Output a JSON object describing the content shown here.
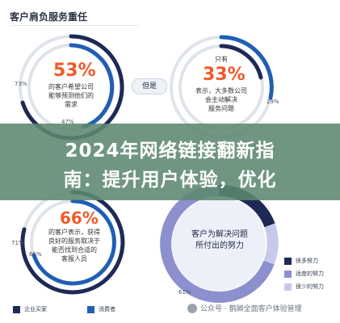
{
  "page": {
    "title": "客户肩负服务重任"
  },
  "top_left": {
    "big": "53%",
    "caption": [
      "的客户希望公司",
      "能够预测他们的",
      "需求"
    ],
    "pct_outer": "73%",
    "pct_inner": "47%"
  },
  "connector": {
    "label": "但是"
  },
  "top_right": {
    "prefix": "只有",
    "big": "33%",
    "caption": [
      "表示，大多数公司",
      "会主动解决",
      "服务问题"
    ],
    "pct_outer": "29%"
  },
  "banner": {
    "line1": "2024年网络链接翻新指",
    "line2": "南：提升用户体验，优化"
  },
  "bottom_left": {
    "big": "66%",
    "caption": [
      "的客户表示，获得",
      "良好的服务取决于",
      "能否找到合适的",
      "客服人员"
    ],
    "pct_outer": "71%",
    "pct_inner": "65%"
  },
  "bottom_right": {
    "caption": [
      "客户为解决问题",
      "所付出的努力"
    ],
    "pct_bottom": "61%",
    "legend": [
      "很多努力",
      "适度的努力",
      "很少的努力"
    ]
  },
  "legend_bottom": {
    "items": [
      "企业买家",
      "消费者"
    ]
  },
  "watermark": {
    "text": "公众号 · 鹊脚全面客户体验管理"
  },
  "colors": {
    "navy": "#1c2a55",
    "blue": "#1f5fb4",
    "orange": "#ef5a2a",
    "purple": "#8d90cf",
    "lavender": "#c7c9ea",
    "gray_track": "#dfe3ea"
  }
}
